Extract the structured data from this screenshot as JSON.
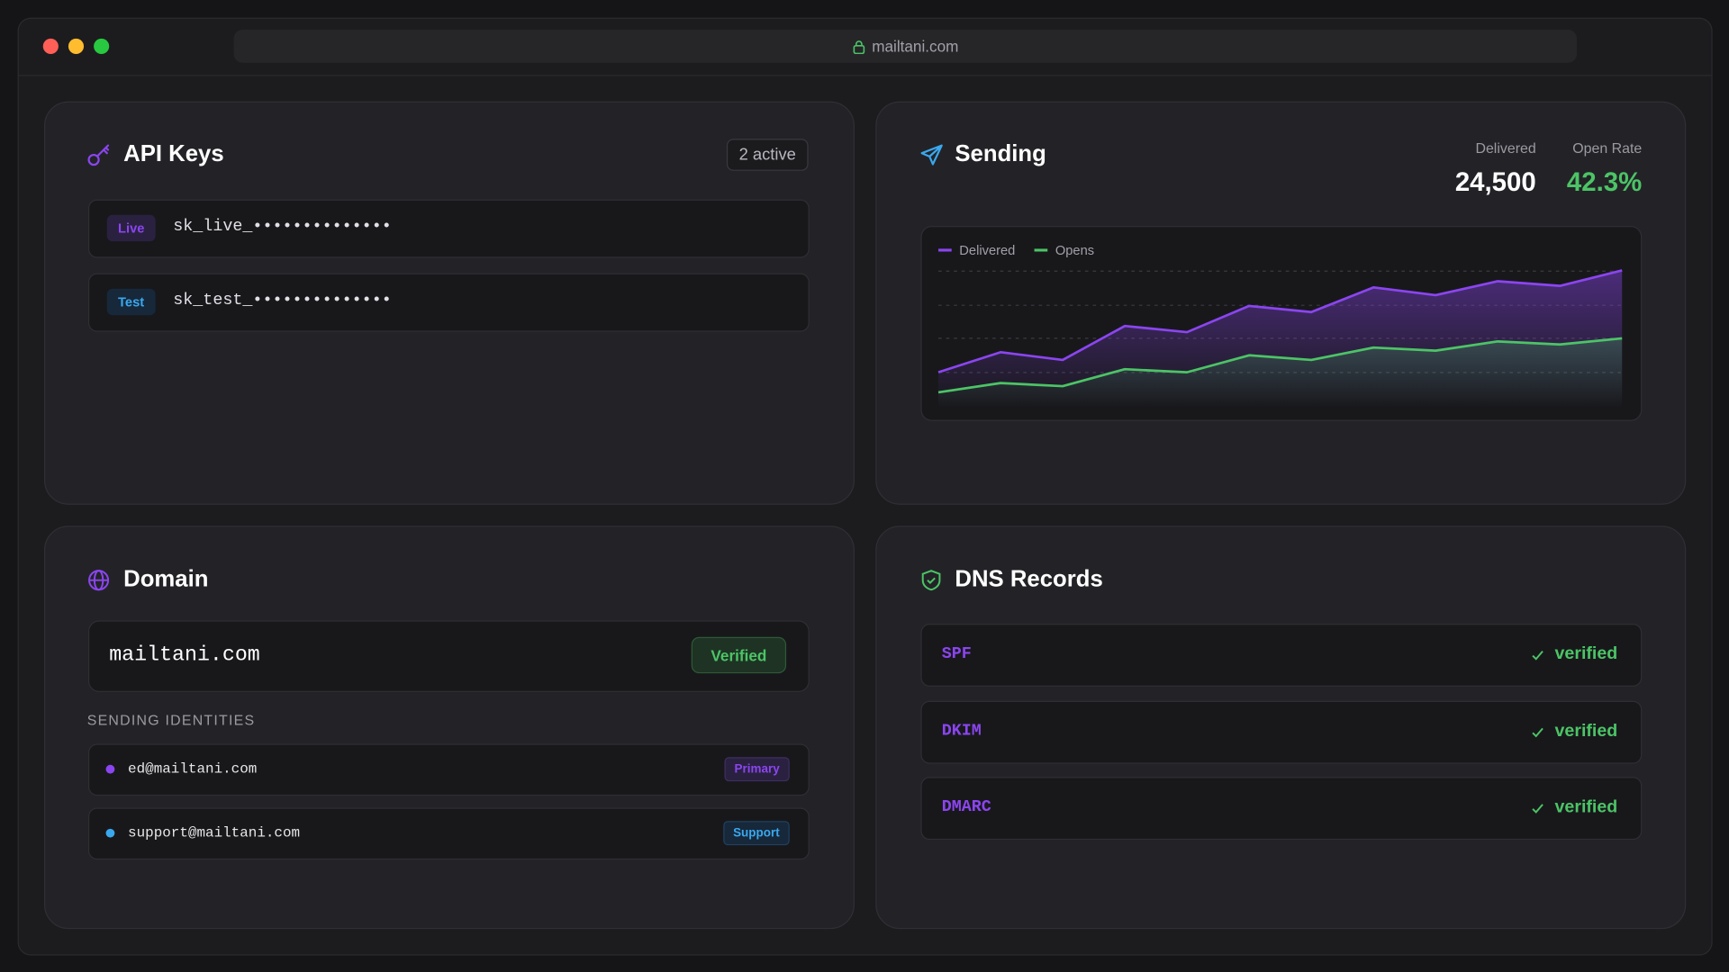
{
  "browser": {
    "url": "mailtani.com"
  },
  "api_keys": {
    "title": "API Keys",
    "badge": "2 active",
    "keys": [
      {
        "env": "Live",
        "key": "sk_live_••••••••••••••"
      },
      {
        "env": "Test",
        "key": "sk_test_••••••••••••••"
      }
    ]
  },
  "sending": {
    "title": "Sending",
    "stats": [
      {
        "label": "Delivered",
        "value": "24,500"
      },
      {
        "label": "Open Rate",
        "value": "42.3%"
      }
    ]
  },
  "chart_data": {
    "type": "line",
    "ylim": [
      0,
      100
    ],
    "series": [
      {
        "name": "Delivered",
        "color": "#8b45f0",
        "values": [
          23,
          36,
          31,
          53,
          49,
          66,
          62,
          78,
          73,
          82,
          79,
          89
        ]
      },
      {
        "name": "Opens",
        "color": "#4cc466",
        "values": [
          10,
          16,
          14,
          25,
          23,
          34,
          31,
          39,
          37,
          43,
          41,
          45
        ]
      }
    ]
  },
  "domain": {
    "title": "Domain",
    "name": "mailtani.com",
    "status": "Verified",
    "identities_label": "SENDING IDENTITIES",
    "identities": [
      {
        "email": "ed@mailtani.com",
        "tag": "Primary"
      },
      {
        "email": "support@mailtani.com",
        "tag": "Support"
      }
    ]
  },
  "dns": {
    "title": "DNS Records",
    "records": [
      {
        "type": "SPF",
        "status": "verified"
      },
      {
        "type": "DKIM",
        "status": "verified"
      },
      {
        "type": "DMARC",
        "status": "verified"
      }
    ]
  }
}
